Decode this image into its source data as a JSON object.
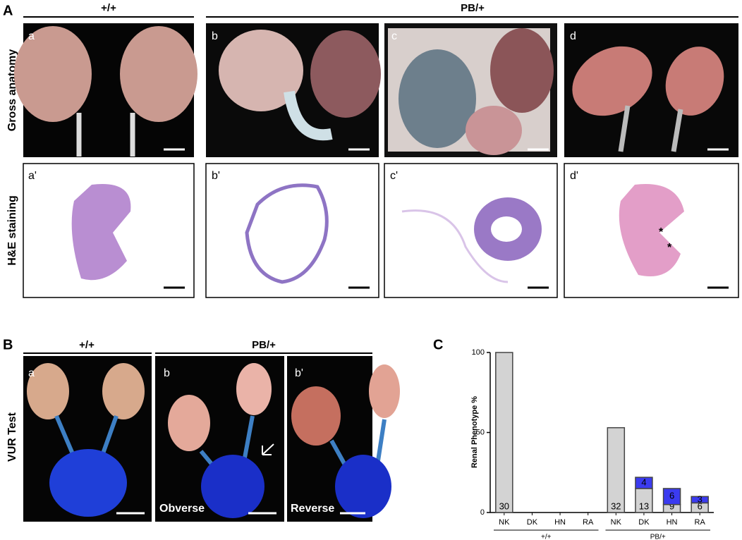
{
  "panel_a": {
    "label": "A",
    "groups": [
      "+/+",
      "PB/+"
    ],
    "rows": [
      "Gross anatomy",
      "H&E staining"
    ],
    "top_images": [
      "a",
      "b",
      "c",
      "d"
    ],
    "bottom_images": [
      "a'",
      "b'",
      "c'",
      "d'"
    ],
    "marks": [
      "*",
      "*"
    ]
  },
  "panel_b": {
    "label": "B",
    "groups": [
      "+/+",
      "PB/+"
    ],
    "row": "VUR Test",
    "images": [
      "a",
      "b",
      "b'"
    ],
    "captions": [
      "Obverse",
      "Reverse"
    ]
  },
  "chart_data": {
    "label": "C",
    "type": "bar",
    "stacked": true,
    "ylabel": "Renal Phenotype %",
    "categories": [
      "NK",
      "DK",
      "HN",
      "RA",
      "NK",
      "DK",
      "HN",
      "RA"
    ],
    "groups": [
      "+/+",
      "PB/+"
    ],
    "series": [
      {
        "color": "#d3d3d3",
        "values": [
          100,
          null,
          null,
          null,
          53,
          15,
          5,
          6
        ],
        "counts": [
          30,
          null,
          null,
          null,
          32,
          13,
          9,
          6
        ]
      },
      {
        "color": "#3b3bf0",
        "values": [
          null,
          null,
          null,
          null,
          null,
          7,
          10,
          4
        ],
        "counts": [
          null,
          null,
          null,
          null,
          null,
          4,
          6,
          3
        ]
      }
    ],
    "ylim": [
      0,
      100
    ],
    "yticks": [
      0,
      50,
      100
    ]
  }
}
